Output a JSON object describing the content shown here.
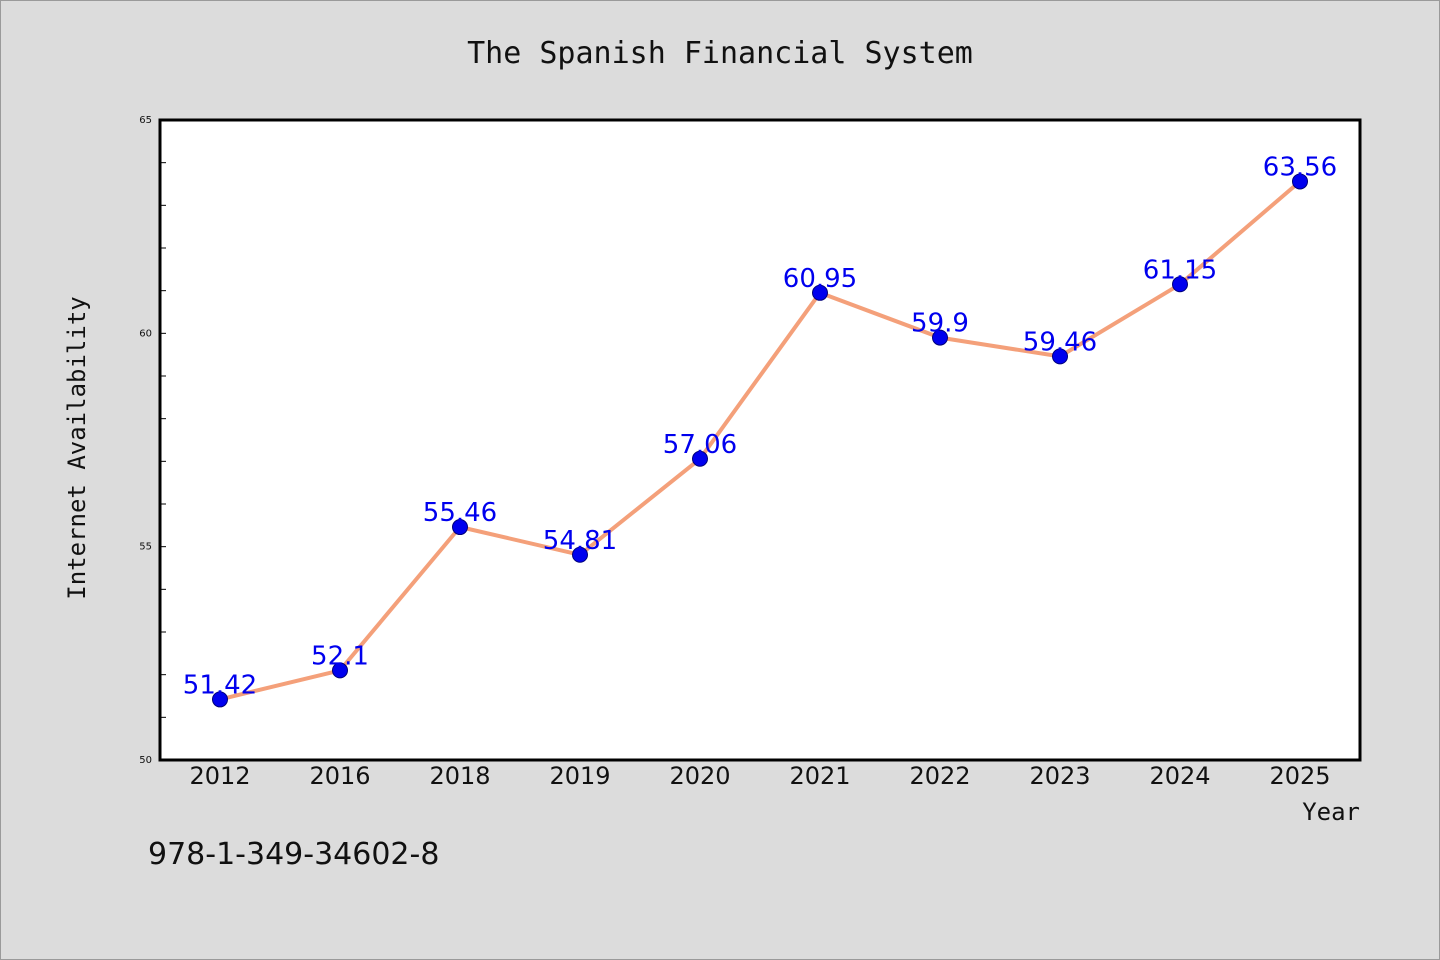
{
  "chart_data": {
    "type": "line",
    "title": "The Spanish Financial System",
    "xlabel": "Year",
    "ylabel": "Internet Availability",
    "categories": [
      "2012",
      "2016",
      "2018",
      "2019",
      "2020",
      "2021",
      "2022",
      "2023",
      "2024",
      "2025"
    ],
    "series": [
      {
        "values": [
          51.42,
          52.1,
          55.46,
          54.81,
          57.06,
          60.95,
          59.9,
          59.46,
          61.15,
          63.56
        ],
        "labels": [
          "51.42",
          "52.1",
          "55.46",
          "54.81",
          "57.06",
          "60.95",
          "59.9",
          "59.46",
          "61.15",
          "63.56"
        ]
      }
    ],
    "ylim": [
      50,
      65
    ],
    "yticks": [
      "50",
      "55",
      "60",
      "65"
    ],
    "y_minor_step": 1,
    "grid": false,
    "legend": "none",
    "colors": {
      "background": "#dcdcdc",
      "plot_background": "#ffffff",
      "line": "#f4a07a",
      "marker": "#0000ee",
      "data_label": "#0000ee"
    }
  },
  "footer": {
    "text": "978-1-349-34602-8"
  }
}
